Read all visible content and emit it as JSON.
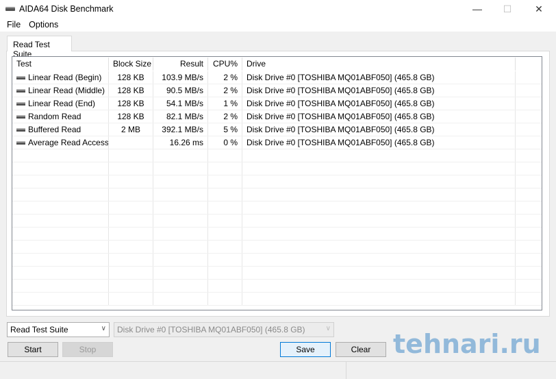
{
  "window": {
    "title": "AIDA64 Disk Benchmark",
    "minimize": "—",
    "maximize": "☐",
    "close": "✕"
  },
  "menu": [
    "File",
    "Options"
  ],
  "tab": "Read Test Suite",
  "columns": [
    "Test",
    "Block Size",
    "Result",
    "CPU%",
    "Drive"
  ],
  "rows": [
    {
      "test": "Linear Read (Begin)",
      "block": "128 KB",
      "result": "103.9 MB/s",
      "cpu": "2 %",
      "drive": "Disk Drive #0  [TOSHIBA MQ01ABF050]  (465.8 GB)"
    },
    {
      "test": "Linear Read (Middle)",
      "block": "128 KB",
      "result": "90.5 MB/s",
      "cpu": "2 %",
      "drive": "Disk Drive #0  [TOSHIBA MQ01ABF050]  (465.8 GB)"
    },
    {
      "test": "Linear Read (End)",
      "block": "128 KB",
      "result": "54.1 MB/s",
      "cpu": "1 %",
      "drive": "Disk Drive #0  [TOSHIBA MQ01ABF050]  (465.8 GB)"
    },
    {
      "test": "Random Read",
      "block": "128 KB",
      "result": "82.1 MB/s",
      "cpu": "2 %",
      "drive": "Disk Drive #0  [TOSHIBA MQ01ABF050]  (465.8 GB)"
    },
    {
      "test": "Buffered Read",
      "block": "2 MB",
      "result": "392.1 MB/s",
      "cpu": "5 %",
      "drive": "Disk Drive #0  [TOSHIBA MQ01ABF050]  (465.8 GB)"
    },
    {
      "test": "Average Read Access",
      "block": "",
      "result": "16.26 ms",
      "cpu": "0 %",
      "drive": "Disk Drive #0  [TOSHIBA MQ01ABF050]  (465.8 GB)"
    }
  ],
  "controls": {
    "suite": "Read Test Suite",
    "drive": "Disk Drive #0  [TOSHIBA MQ01ABF050]  (465.8 GB)",
    "start": "Start",
    "stop": "Stop",
    "save": "Save",
    "clear": "Clear"
  },
  "watermark": "tehnari.ru"
}
